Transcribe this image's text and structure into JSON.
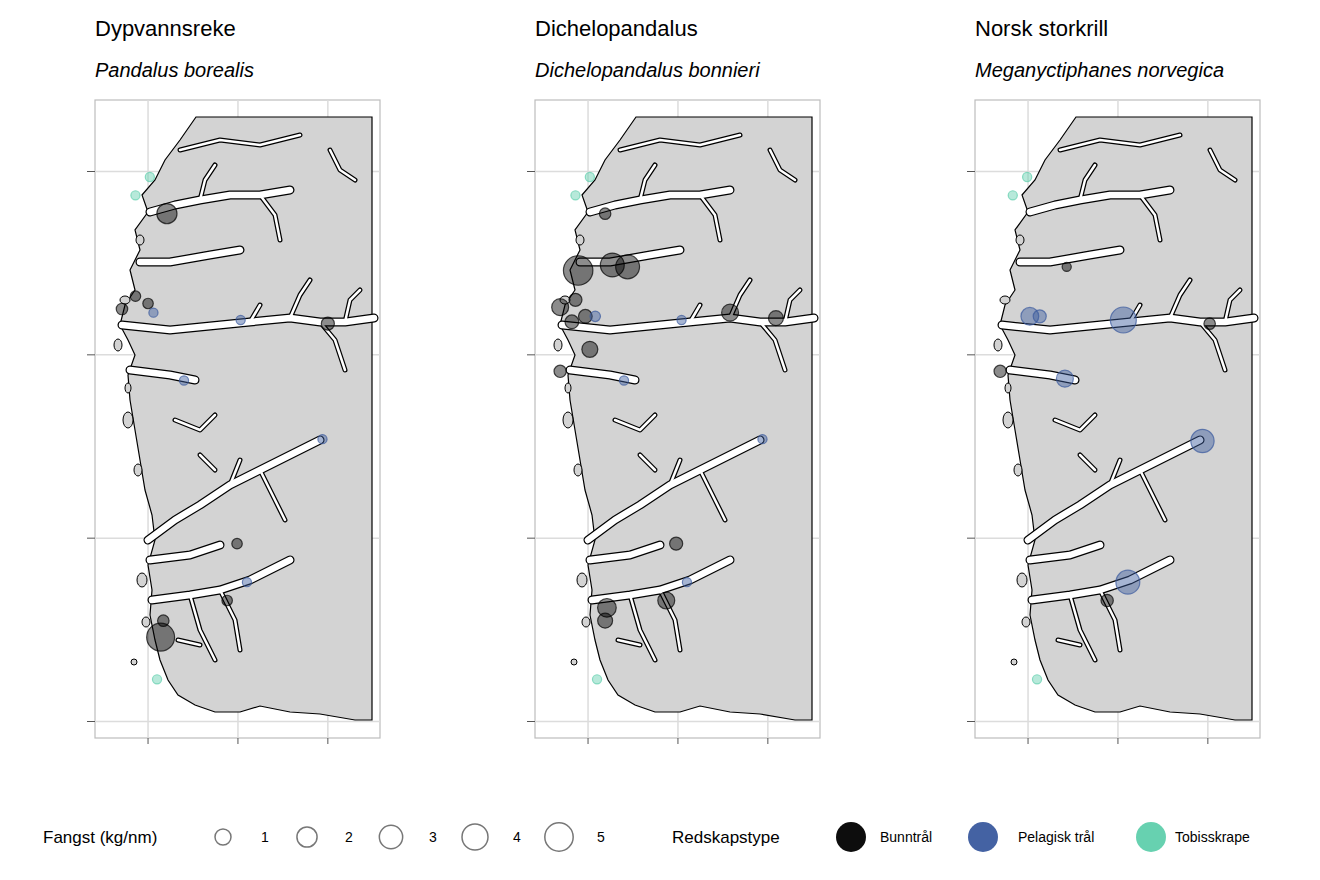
{
  "chart_data": [
    {
      "type": "scatter",
      "title": "Dypvannsreke",
      "subtitle": "Pandalus borealis",
      "xlim": [
        4.41,
        7.58
      ],
      "ylim": [
        58.91,
        62.39
      ],
      "xticks": [
        5,
        6,
        7
      ],
      "yticks": [
        59,
        60,
        61,
        62
      ],
      "grid": true,
      "tick_labels": false,
      "series": [
        {
          "name": "Bunntrål",
          "color": "#000000",
          "x": [
            5.21,
            4.86,
            4.71,
            5.0,
            5.17,
            5.14,
            5.99,
            5.88,
            7.0
          ],
          "values": [
            61.77,
            61.32,
            61.25,
            61.28,
            59.55,
            59.46,
            59.97,
            59.66,
            61.17
          ],
          "size": [
            2.0,
            0.2,
            0.3,
            0.2,
            0.3,
            4.8,
            0.2,
            0.2,
            0.5
          ]
        },
        {
          "name": "Pelagisk trål",
          "color": "#3a5a9e",
          "x": [
            5.06,
            6.03,
            5.4,
            6.1,
            6.94
          ],
          "values": [
            61.23,
            61.19,
            60.86,
            59.76,
            60.54
          ],
          "size": [
            0.1,
            0.1,
            0.1,
            0.1,
            0.1
          ]
        },
        {
          "name": "Tobisskrape",
          "color": "#5fcfac",
          "x": [
            4.86,
            5.02,
            5.1
          ],
          "values": [
            61.87,
            61.97,
            59.23
          ],
          "size": [
            0.1,
            0.1,
            0.1
          ]
        }
      ]
    },
    {
      "type": "scatter",
      "title": "Dichelopandalus",
      "subtitle": "Dichelopandalus bonnieri",
      "xlim": [
        4.41,
        7.58
      ],
      "ylim": [
        58.91,
        62.39
      ],
      "xticks": [
        5,
        6,
        7
      ],
      "yticks": [
        59,
        60,
        61,
        62
      ],
      "grid": true,
      "tick_labels": false,
      "series": [
        {
          "name": "Bunntrål",
          "color": "#000000",
          "x": [
            5.19,
            4.89,
            5.27,
            5.44,
            4.69,
            4.86,
            4.82,
            4.97,
            5.02,
            4.69,
            6.58,
            7.09,
            5.98,
            5.87,
            5.21,
            5.19
          ],
          "values": [
            61.77,
            61.46,
            61.49,
            61.48,
            61.26,
            61.3,
            61.18,
            61.21,
            61.03,
            60.91,
            61.23,
            61.2,
            59.97,
            59.66,
            59.62,
            59.55
          ],
          "size": [
            0.3,
            5.5,
            3.2,
            3.2,
            1.2,
            0.5,
            0.6,
            0.6,
            1.0,
            0.4,
            1.2,
            0.8,
            0.5,
            1.2,
            1.6,
            0.8
          ]
        },
        {
          "name": "Pelagisk trål",
          "color": "#3a5a9e",
          "x": [
            5.08,
            6.04,
            5.4,
            6.1,
            6.94
          ],
          "values": [
            61.21,
            61.19,
            60.86,
            59.76,
            60.54
          ],
          "size": [
            0.2,
            0.1,
            0.1,
            0.1,
            0.1
          ]
        },
        {
          "name": "Tobisskrape",
          "color": "#5fcfac",
          "x": [
            4.86,
            5.02,
            5.1
          ],
          "values": [
            61.87,
            61.97,
            59.23
          ],
          "size": [
            0.1,
            0.1,
            0.1
          ]
        }
      ]
    },
    {
      "type": "scatter",
      "title": "Norsk storkrill",
      "subtitle": "Meganyctiphanes norvegica",
      "xlim": [
        4.41,
        7.58
      ],
      "ylim": [
        58.91,
        62.39
      ],
      "xticks": [
        5,
        6,
        7
      ],
      "yticks": [
        59,
        60,
        61,
        62
      ],
      "grid": true,
      "tick_labels": false,
      "series": [
        {
          "name": "Bunntrål",
          "color": "#000000",
          "x": [
            4.69,
            5.43,
            7.02,
            5.88
          ],
          "values": [
            60.91,
            61.48,
            61.17,
            59.66
          ],
          "size": [
            0.4,
            0.1,
            0.3,
            0.4
          ]
        },
        {
          "name": "Pelagisk trål",
          "color": "#3a5a9e",
          "x": [
            5.02,
            5.13,
            6.06,
            5.41,
            6.94,
            6.11
          ],
          "values": [
            61.21,
            61.21,
            61.19,
            60.87,
            60.53,
            59.76
          ],
          "size": [
            1.4,
            0.5,
            4.0,
            1.2,
            3.0,
            3.2
          ]
        },
        {
          "name": "Tobisskrape",
          "color": "#5fcfac",
          "x": [
            4.83,
            4.99,
            5.1
          ],
          "values": [
            61.87,
            61.97,
            59.23
          ],
          "size": [
            0.1,
            0.1,
            0.1
          ]
        }
      ]
    }
  ],
  "legend_data": {
    "size_title": "Fangst (kg/nm)",
    "size_values": [
      1,
      2,
      3,
      4,
      5
    ],
    "gear_title": "Redskapstype"
  }
}
